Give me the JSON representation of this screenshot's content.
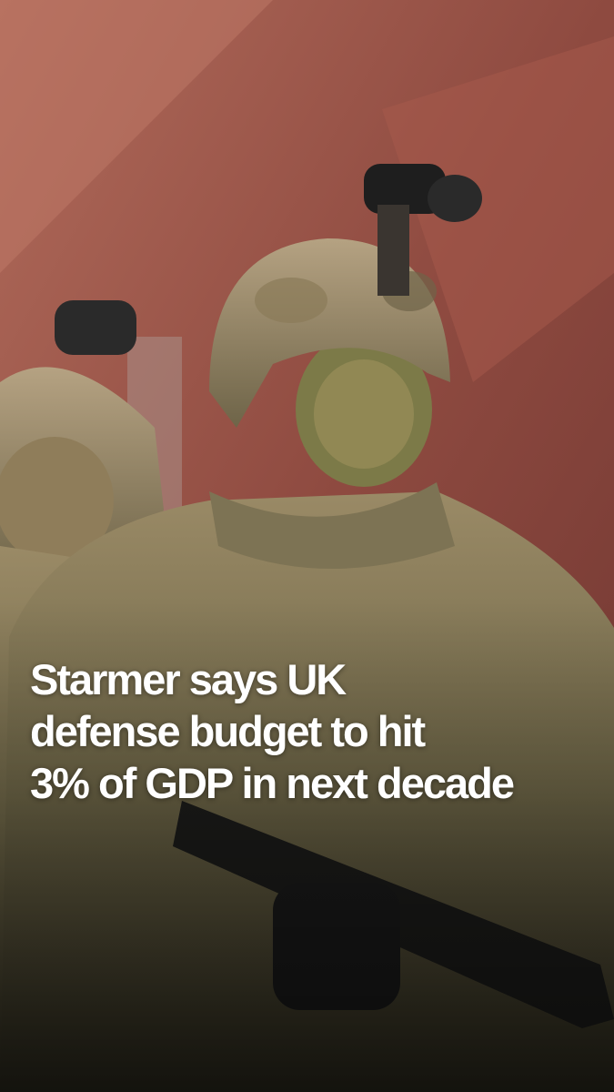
{
  "headline": [
    "Starmer says UK",
    "defense budget to hit",
    "3% of GDP in next decade"
  ]
}
